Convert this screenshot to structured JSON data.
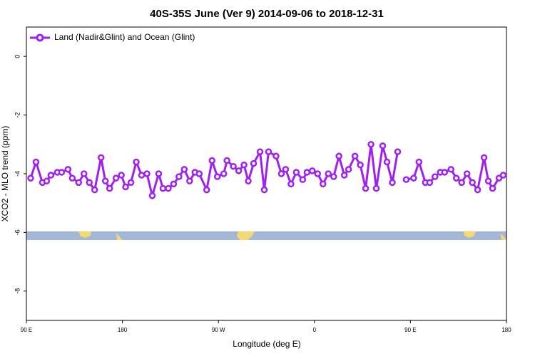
{
  "chart_data": {
    "type": "line",
    "title": "40S-35S June (Ver 9)   2014-09-06 to 2018-12-31",
    "x_label": "Longitude (deg E)",
    "y_label": "XCO2 - MLO trend (ppm)",
    "x": [
      94,
      99,
      105,
      109,
      113,
      119,
      123,
      129,
      133,
      139,
      144,
      149,
      154,
      160,
      164,
      168,
      174,
      179,
      183,
      188,
      193,
      198,
      203,
      208,
      214,
      218,
      223,
      228,
      233,
      238,
      243,
      248,
      252,
      259,
      264,
      269,
      275,
      278,
      284,
      289,
      294,
      298,
      303,
      309,
      313,
      317,
      324,
      329,
      333,
      338,
      343,
      349,
      353,
      358,
      363,
      368,
      373,
      378,
      383,
      388,
      392,
      398,
      403,
      408,
      413,
      418,
      424,
      428,
      433,
      438,
      443,
      446,
      453,
      458,
      464,
      468,
      473,
      478,
      482,
      488,
      493,
      498,
      503,
      508,
      513,
      519,
      523,
      527,
      533,
      537
    ],
    "series": [
      {
        "name": "Land (Nadir&Glint) and Ocean (Glint)",
        "color": "#a020f0",
        "values": [
          -4.15,
          -3.6,
          -4.3,
          -4.25,
          -4.05,
          -3.95,
          -3.95,
          -3.85,
          -4.15,
          -4.3,
          -4.0,
          -4.3,
          -4.55,
          -3.45,
          -4.25,
          -4.5,
          -4.15,
          -4.05,
          -4.45,
          -4.3,
          -3.6,
          -4.05,
          -4.0,
          -4.75,
          -4.0,
          -4.5,
          -4.5,
          -4.35,
          -4.1,
          -3.85,
          -4.25,
          -3.95,
          -4.0,
          -4.55,
          -3.55,
          -4.1,
          -4.0,
          -3.55,
          -3.75,
          -3.9,
          -3.7,
          -4.25,
          -3.65,
          -3.25,
          -4.55,
          -3.25,
          -3.4,
          -4.0,
          -3.85,
          -4.35,
          -3.95,
          -4.2,
          -3.95,
          -3.9,
          -4.0,
          -4.35,
          -4.0,
          -4.1,
          -3.4,
          -4.05,
          -3.85,
          -3.4,
          -3.7,
          -4.5,
          -3.0,
          -4.5,
          -3.05,
          -3.6,
          -4.3,
          -3.25,
          null,
          -4.2,
          -4.15,
          -3.6,
          -4.3,
          -4.3,
          -4.1,
          -3.95,
          -3.95,
          -3.85,
          -4.15,
          -4.3,
          -4.0,
          -4.3,
          -4.55,
          -3.45,
          -4.25,
          -4.5,
          -4.15,
          -4.05
        ]
      }
    ],
    "xlim": [
      90,
      540
    ],
    "xticks": [
      {
        "value": 90,
        "label": "90 E"
      },
      180,
      {
        "value": 270,
        "label": "90 W"
      },
      {
        "value": 360,
        "label": "0"
      },
      {
        "value": 450,
        "label": "90 E"
      },
      {
        "value": 540,
        "label": "180"
      }
    ],
    "ylim": [
      -9,
      1
    ],
    "yticks": [
      0,
      -2,
      -4,
      -6,
      -8
    ],
    "legend": "top-left"
  }
}
